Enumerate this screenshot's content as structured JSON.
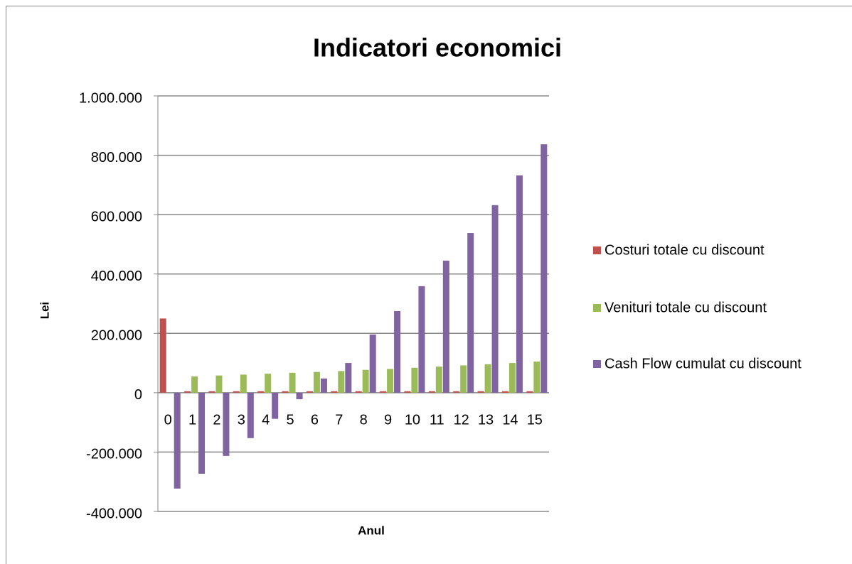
{
  "chart_data": {
    "type": "bar",
    "title": "Indicatori economici",
    "x_label": "Anul",
    "y_label": "Lei",
    "categories": [
      "0",
      "1",
      "2",
      "3",
      "4",
      "5",
      "6",
      "7",
      "8",
      "9",
      "10",
      "11",
      "12",
      "13",
      "14",
      "15"
    ],
    "series": [
      {
        "name": "Costuri totale cu discount",
        "color": "#c0504d",
        "values": [
          250000,
          5000,
          5000,
          5000,
          5000,
          5000,
          5000,
          5000,
          5000,
          5000,
          5000,
          5000,
          5000,
          5000,
          5000,
          5000
        ]
      },
      {
        "name": "Venituri totale cu discount",
        "color": "#9bbb59",
        "values": [
          0,
          55000,
          58000,
          61000,
          64000,
          67000,
          70000,
          73000,
          77000,
          80000,
          84000,
          88000,
          92000,
          96000,
          100000,
          105000
        ]
      },
      {
        "name": "Cash Flow cumulat cu discount",
        "color": "#8064a2",
        "values": [
          -323000,
          -273000,
          -213000,
          -153000,
          -88000,
          -22000,
          48000,
          100000,
          196000,
          275000,
          359000,
          445000,
          538000,
          632000,
          732000,
          837000
        ]
      }
    ],
    "ylim": [
      -400000,
      1000000
    ],
    "yticks": [
      {
        "value": -400000,
        "label": "-400.000"
      },
      {
        "value": -200000,
        "label": "-200.000"
      },
      0,
      {
        "value": 200000,
        "label": "200.000"
      },
      {
        "value": 400000,
        "label": "400.000"
      },
      {
        "value": 600000,
        "label": "600.000"
      },
      {
        "value": 800000,
        "label": "800.000"
      },
      {
        "value": 1000000,
        "label": "1.000.000"
      }
    ],
    "grid": true,
    "legend": "right"
  }
}
